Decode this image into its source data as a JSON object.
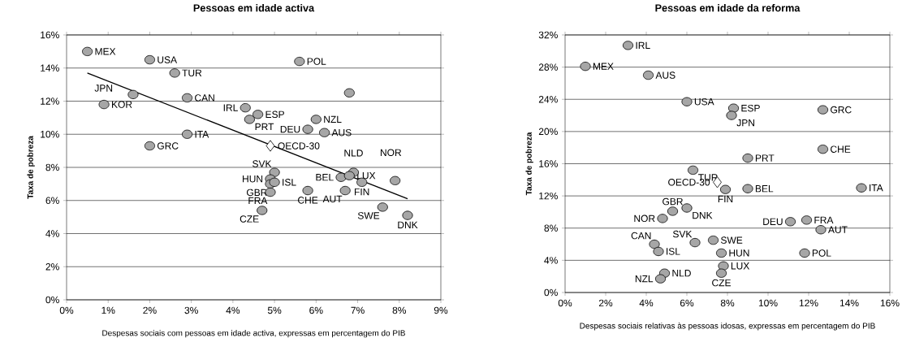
{
  "chart_data": [
    {
      "type": "scatter",
      "title": "Pessoas em idade activa",
      "xlabel": "Despesas sociais com pessoas em idade activa, expressas em percentagem do PIB",
      "ylabel": "Taxa de pobreza",
      "xlim": [
        0,
        9
      ],
      "ylim": [
        0,
        16
      ],
      "xticks": [
        {
          "value": 0,
          "label": "0%"
        },
        {
          "value": 1,
          "label": "1%"
        },
        {
          "value": 2,
          "label": "2%"
        },
        {
          "value": 3,
          "label": "3%"
        },
        {
          "value": 4,
          "label": "4%"
        },
        {
          "value": 5,
          "label": "5%"
        },
        {
          "value": 6,
          "label": "6%"
        },
        {
          "value": 7,
          "label": "7%"
        },
        {
          "value": 8,
          "label": "8%"
        },
        {
          "value": 9,
          "label": "9%"
        }
      ],
      "yticks": [
        {
          "value": 0,
          "label": "0%"
        },
        {
          "value": 2,
          "label": "2%"
        },
        {
          "value": 4,
          "label": "4%"
        },
        {
          "value": 6,
          "label": "6%"
        },
        {
          "value": 8,
          "label": "8%"
        },
        {
          "value": 10,
          "label": "10%"
        },
        {
          "value": 12,
          "label": "12%"
        },
        {
          "value": 14,
          "label": "14%"
        },
        {
          "value": 16,
          "label": "16%"
        }
      ],
      "grid": "y",
      "series": [
        {
          "marker": "circle",
          "color": "#a6a6a6",
          "x": [
            0.5,
            2.0,
            2.6,
            1.6,
            0.9,
            2.9,
            4.3,
            4.6,
            4.4,
            6.0,
            5.8,
            6.2,
            2.9,
            2.0,
            5.6,
            5.0,
            4.9,
            4.9,
            5.0,
            4.9,
            4.7,
            5.8,
            6.7,
            6.6,
            6.9,
            6.8,
            7.1,
            7.9,
            7.6,
            8.2,
            6.8
          ],
          "values": [
            15.0,
            14.5,
            13.7,
            12.4,
            11.8,
            12.2,
            11.6,
            11.2,
            10.9,
            10.9,
            10.3,
            10.1,
            10.0,
            9.3,
            14.4,
            7.7,
            7.3,
            7.0,
            7.1,
            6.5,
            5.4,
            6.6,
            6.6,
            7.4,
            7.7,
            7.5,
            7.1,
            7.2,
            5.6,
            5.1,
            12.5
          ]
        },
        {
          "marker": "diamond",
          "color": "#ffffff",
          "x": [
            4.9
          ],
          "values": [
            9.3
          ]
        },
        {
          "type": "line",
          "marker": "none",
          "color": "#000000",
          "x": [
            0.5,
            8.2
          ],
          "values": [
            13.7,
            6.1
          ]
        }
      ],
      "annotations": [
        {
          "text": "MEX",
          "x": 0.5,
          "y": 15.0
        },
        {
          "text": "USA",
          "x": 2.0,
          "y": 14.5
        },
        {
          "text": "TUR",
          "x": 2.6,
          "y": 13.7
        },
        {
          "text": "JPN",
          "x": 1.6,
          "y": 12.4
        },
        {
          "text": "KOR",
          "x": 0.9,
          "y": 11.8
        },
        {
          "text": "CAN",
          "x": 2.9,
          "y": 12.2
        },
        {
          "text": "IRL",
          "x": 4.3,
          "y": 11.6
        },
        {
          "text": "ESP",
          "x": 4.6,
          "y": 11.2
        },
        {
          "text": "PRT",
          "x": 4.4,
          "y": 10.9
        },
        {
          "text": "NZL",
          "x": 6.0,
          "y": 10.9
        },
        {
          "text": "DEU",
          "x": 5.8,
          "y": 10.3
        },
        {
          "text": "AUS",
          "x": 6.2,
          "y": 10.1
        },
        {
          "text": "ITA",
          "x": 2.9,
          "y": 10.0
        },
        {
          "text": "GRC",
          "x": 2.0,
          "y": 9.3
        },
        {
          "text": "OECD-30",
          "x": 4.9,
          "y": 9.3
        },
        {
          "text": "POL",
          "x": 5.6,
          "y": 14.4
        },
        {
          "text": "SVK",
          "x": 5.0,
          "y": 7.7
        },
        {
          "text": "HUN",
          "x": 4.9,
          "y": 7.3
        },
        {
          "text": "GBR",
          "x": 4.9,
          "y": 7.0
        },
        {
          "text": "ISL",
          "x": 5.0,
          "y": 7.1
        },
        {
          "text": "FRA",
          "x": 4.9,
          "y": 6.5
        },
        {
          "text": "CZE",
          "x": 4.7,
          "y": 5.4
        },
        {
          "text": "CHE",
          "x": 5.8,
          "y": 6.6
        },
        {
          "text": "AUT",
          "x": 6.7,
          "y": 6.6
        },
        {
          "text": "BEL",
          "x": 6.6,
          "y": 7.4
        },
        {
          "text": "NLD",
          "x": 6.9,
          "y": 7.7
        },
        {
          "text": "LUX",
          "x": 6.8,
          "y": 7.5
        },
        {
          "text": "FIN",
          "x": 7.1,
          "y": 7.1
        },
        {
          "text": "NOR",
          "x": 7.9,
          "y": 7.2
        },
        {
          "text": "SWE",
          "x": 7.6,
          "y": 5.6
        },
        {
          "text": "DNK",
          "x": 8.2,
          "y": 5.1
        }
      ]
    },
    {
      "type": "scatter",
      "title": "Pessoas em idade da reforma",
      "xlabel": "Despesas sociais relativas às pessoas idosas, expressas em percentagem do PIB",
      "ylabel": "Taxa de pobreza",
      "xlim": [
        0,
        16
      ],
      "ylim": [
        0,
        32
      ],
      "xticks": [
        {
          "value": 0,
          "label": "0%"
        },
        {
          "value": 2,
          "label": "2%"
        },
        {
          "value": 4,
          "label": "4%"
        },
        {
          "value": 6,
          "label": "6%"
        },
        {
          "value": 8,
          "label": "8%"
        },
        {
          "value": 10,
          "label": "10%"
        },
        {
          "value": 12,
          "label": "12%"
        },
        {
          "value": 14,
          "label": "14%"
        },
        {
          "value": 16,
          "label": "16%"
        }
      ],
      "yticks": [
        {
          "value": 0,
          "label": "0%"
        },
        {
          "value": 4,
          "label": "4%"
        },
        {
          "value": 8,
          "label": "8%"
        },
        {
          "value": 12,
          "label": "12%"
        },
        {
          "value": 16,
          "label": "16%"
        },
        {
          "value": 20,
          "label": "20%"
        },
        {
          "value": 24,
          "label": "24%"
        },
        {
          "value": 28,
          "label": "28%"
        },
        {
          "value": 32,
          "label": "32%"
        }
      ],
      "grid": "y",
      "series": [
        {
          "marker": "circle",
          "color": "#a6a6a6",
          "x": [
            3.1,
            1.0,
            4.1,
            6.0,
            8.3,
            8.2,
            12.7,
            12.7,
            9.0,
            6.3,
            7.9,
            9.0,
            14.6,
            5.3,
            6.0,
            4.8,
            11.1,
            11.9,
            12.6,
            4.4,
            6.4,
            4.6,
            7.3,
            7.7,
            11.8,
            7.8,
            7.7,
            4.9,
            4.7
          ],
          "values": [
            30.7,
            28.1,
            27.0,
            23.7,
            22.9,
            22.0,
            22.7,
            17.8,
            16.7,
            15.2,
            12.8,
            12.9,
            13.0,
            10.1,
            10.5,
            9.2,
            8.8,
            9.0,
            7.8,
            6.0,
            6.2,
            5.1,
            6.5,
            4.9,
            4.9,
            3.3,
            2.4,
            2.4,
            1.7
          ]
        },
        {
          "marker": "diamond",
          "color": "#ffffff",
          "x": [
            7.5
          ],
          "values": [
            13.7
          ]
        }
      ],
      "annotations": [
        {
          "text": "IRL",
          "x": 3.1,
          "y": 30.7
        },
        {
          "text": "MEX",
          "x": 1.0,
          "y": 28.1
        },
        {
          "text": "AUS",
          "x": 4.1,
          "y": 27.0
        },
        {
          "text": "USA",
          "x": 6.0,
          "y": 23.7
        },
        {
          "text": "ESP",
          "x": 8.3,
          "y": 22.9
        },
        {
          "text": "JPN",
          "x": 8.2,
          "y": 22.0
        },
        {
          "text": "GRC",
          "x": 12.7,
          "y": 22.7
        },
        {
          "text": "CHE",
          "x": 12.7,
          "y": 17.8
        },
        {
          "text": "PRT",
          "x": 9.0,
          "y": 16.7
        },
        {
          "text": "TUR",
          "x": 6.3,
          "y": 15.2
        },
        {
          "text": "OECD-30",
          "x": 7.5,
          "y": 13.7
        },
        {
          "text": "FIN",
          "x": 7.9,
          "y": 12.8
        },
        {
          "text": "BEL",
          "x": 9.0,
          "y": 12.9
        },
        {
          "text": "ITA",
          "x": 14.6,
          "y": 13.0
        },
        {
          "text": "GBR",
          "x": 5.3,
          "y": 10.1
        },
        {
          "text": "DNK",
          "x": 6.0,
          "y": 10.5
        },
        {
          "text": "NOR",
          "x": 4.8,
          "y": 9.2
        },
        {
          "text": "DEU",
          "x": 11.1,
          "y": 8.8
        },
        {
          "text": "FRA",
          "x": 11.9,
          "y": 9.0
        },
        {
          "text": "AUT",
          "x": 12.6,
          "y": 7.8
        },
        {
          "text": "CAN",
          "x": 4.4,
          "y": 6.0
        },
        {
          "text": "SVK",
          "x": 6.4,
          "y": 6.2
        },
        {
          "text": "ISL",
          "x": 4.6,
          "y": 5.1
        },
        {
          "text": "SWE",
          "x": 7.3,
          "y": 6.5
        },
        {
          "text": "HUN",
          "x": 7.7,
          "y": 4.9
        },
        {
          "text": "POL",
          "x": 11.8,
          "y": 4.9
        },
        {
          "text": "LUX",
          "x": 7.8,
          "y": 3.3
        },
        {
          "text": "CZE",
          "x": 7.7,
          "y": 2.4
        },
        {
          "text": "NLD",
          "x": 4.9,
          "y": 2.4
        },
        {
          "text": "NZL",
          "x": 4.7,
          "y": 1.7
        }
      ]
    }
  ]
}
